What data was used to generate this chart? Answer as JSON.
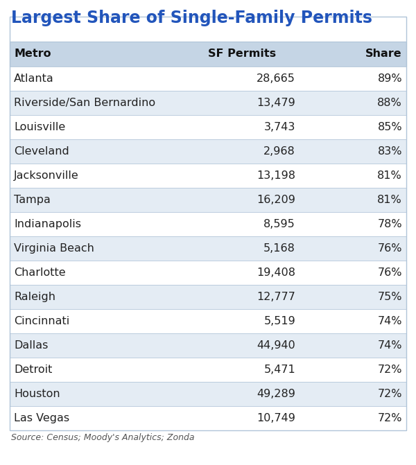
{
  "title": "Largest Share of Single-Family Permits",
  "title_color": "#2255BB",
  "columns": [
    "Metro",
    "SF Permits",
    "Share"
  ],
  "rows": [
    [
      "Atlanta",
      "28,665",
      "89%"
    ],
    [
      "Riverside/San Bernardino",
      "13,479",
      "88%"
    ],
    [
      "Louisville",
      "3,743",
      "85%"
    ],
    [
      "Cleveland",
      "2,968",
      "83%"
    ],
    [
      "Jacksonville",
      "13,198",
      "81%"
    ],
    [
      "Tampa",
      "16,209",
      "81%"
    ],
    [
      "Indianapolis",
      "8,595",
      "78%"
    ],
    [
      "Virginia Beach",
      "5,168",
      "76%"
    ],
    [
      "Charlotte",
      "19,408",
      "76%"
    ],
    [
      "Raleigh",
      "12,777",
      "75%"
    ],
    [
      "Cincinnati",
      "5,519",
      "74%"
    ],
    [
      "Dallas",
      "44,940",
      "74%"
    ],
    [
      "Detroit",
      "5,471",
      "72%"
    ],
    [
      "Houston",
      "49,289",
      "72%"
    ],
    [
      "Las Vegas",
      "10,749",
      "72%"
    ]
  ],
  "footer": "Source: Census; Moody's Analytics; Zonda",
  "header_bg": "#C5D5E5",
  "row_bg_odd": "#FFFFFF",
  "row_bg_even": "#E4ECF4",
  "border_color": "#B0C4D8",
  "text_color": "#222222",
  "header_text_color": "#111111",
  "title_fontsize": 17,
  "header_fontsize": 11.5,
  "cell_fontsize": 11.5,
  "footer_fontsize": 9
}
